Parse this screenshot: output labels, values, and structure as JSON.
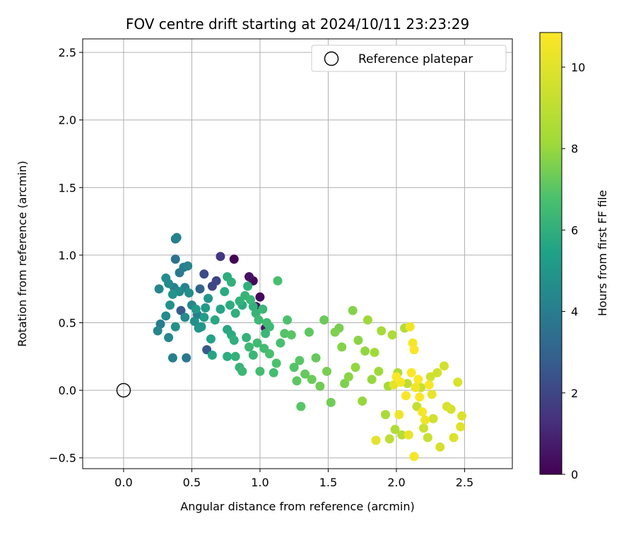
{
  "chart_data": {
    "type": "scatter",
    "title": "FOV centre drift starting at 2024/10/11 23:23:29",
    "xlabel": "Angular distance from reference (arcmin)",
    "ylabel": "Rotation from reference (arcmin)",
    "xlim": [
      -0.3,
      2.85
    ],
    "ylim": [
      -0.58,
      2.6
    ],
    "xticks": [
      0.0,
      0.5,
      1.0,
      1.5,
      2.0,
      2.5
    ],
    "xtick_labels": [
      "0.0",
      "0.5",
      "1.0",
      "1.5",
      "2.0",
      "2.5"
    ],
    "yticks": [
      -0.5,
      0.0,
      0.5,
      1.0,
      1.5,
      2.0,
      2.5
    ],
    "ytick_labels": [
      "−0.5",
      "0.0",
      "0.5",
      "1.0",
      "1.5",
      "2.0",
      "2.5"
    ],
    "grid": true,
    "legend": {
      "position": "top-right",
      "entries": [
        {
          "label": "Reference platepar",
          "marker": "open-circle"
        }
      ]
    },
    "reference_point": {
      "x": 0.0,
      "y": 0.0
    },
    "colorbar": {
      "label": "Hours from first FF file",
      "colormap": "viridis",
      "range": [
        0,
        10.85
      ],
      "ticks": [
        0,
        2,
        4,
        6,
        8,
        10
      ],
      "tick_labels": [
        "0",
        "2",
        "4",
        "6",
        "8",
        "10"
      ]
    },
    "points": [
      {
        "x": 0.71,
        "y": 0.99,
        "c": 1.5
      },
      {
        "x": 0.81,
        "y": 0.97,
        "c": 0.1
      },
      {
        "x": 0.92,
        "y": 0.84,
        "c": 0.5
      },
      {
        "x": 0.95,
        "y": 0.81,
        "c": 0.2
      },
      {
        "x": 0.97,
        "y": 0.62,
        "c": 0.6
      },
      {
        "x": 1.0,
        "y": 0.69,
        "c": 0.3
      },
      {
        "x": 1.04,
        "y": 0.46,
        "c": 0.7
      },
      {
        "x": 0.68,
        "y": 0.81,
        "c": 2.0
      },
      {
        "x": 0.59,
        "y": 0.86,
        "c": 2.2
      },
      {
        "x": 0.65,
        "y": 0.77,
        "c": 2.0
      },
      {
        "x": 0.61,
        "y": 0.3,
        "c": 2.6
      },
      {
        "x": 0.46,
        "y": 0.24,
        "c": 3.8
      },
      {
        "x": 0.36,
        "y": 0.24,
        "c": 4.1
      },
      {
        "x": 0.38,
        "y": 1.12,
        "c": 3.8
      },
      {
        "x": 0.39,
        "y": 1.13,
        "c": 4.2
      },
      {
        "x": 0.38,
        "y": 0.97,
        "c": 3.6
      },
      {
        "x": 0.41,
        "y": 0.87,
        "c": 3.8
      },
      {
        "x": 0.44,
        "y": 0.91,
        "c": 4.0
      },
      {
        "x": 0.47,
        "y": 0.92,
        "c": 4.3
      },
      {
        "x": 0.42,
        "y": 0.59,
        "c": 2.7
      },
      {
        "x": 0.56,
        "y": 0.75,
        "c": 3.0
      },
      {
        "x": 0.31,
        "y": 0.55,
        "c": 4.5
      },
      {
        "x": 0.25,
        "y": 0.44,
        "c": 4.3
      },
      {
        "x": 0.27,
        "y": 0.49,
        "c": 4.0
      },
      {
        "x": 0.33,
        "y": 0.39,
        "c": 4.4
      },
      {
        "x": 0.38,
        "y": 0.47,
        "c": 4.8
      },
      {
        "x": 0.45,
        "y": 0.54,
        "c": 4.6
      },
      {
        "x": 0.52,
        "y": 0.51,
        "c": 4.7
      },
      {
        "x": 0.54,
        "y": 0.56,
        "c": 4.1
      },
      {
        "x": 0.57,
        "y": 0.47,
        "c": 5.0
      },
      {
        "x": 0.6,
        "y": 0.61,
        "c": 5.2
      },
      {
        "x": 0.62,
        "y": 0.68,
        "c": 5.0
      },
      {
        "x": 0.5,
        "y": 0.63,
        "c": 4.4
      },
      {
        "x": 0.48,
        "y": 0.72,
        "c": 4.7
      },
      {
        "x": 0.45,
        "y": 0.76,
        "c": 4.2
      },
      {
        "x": 0.41,
        "y": 0.73,
        "c": 4.6
      },
      {
        "x": 0.36,
        "y": 0.71,
        "c": 4.9
      },
      {
        "x": 0.33,
        "y": 0.79,
        "c": 4.5
      },
      {
        "x": 0.26,
        "y": 0.75,
        "c": 4.3
      },
      {
        "x": 0.34,
        "y": 0.63,
        "c": 4.8
      },
      {
        "x": 0.31,
        "y": 0.83,
        "c": 4.6
      },
      {
        "x": 0.37,
        "y": 0.76,
        "c": 4.1
      },
      {
        "x": 0.53,
        "y": 0.6,
        "c": 5.1
      },
      {
        "x": 0.55,
        "y": 0.46,
        "c": 4.9
      },
      {
        "x": 0.59,
        "y": 0.54,
        "c": 5.3
      },
      {
        "x": 0.64,
        "y": 0.38,
        "c": 5.5
      },
      {
        "x": 0.65,
        "y": 0.26,
        "c": 5.6
      },
      {
        "x": 0.67,
        "y": 0.52,
        "c": 5.7
      },
      {
        "x": 0.71,
        "y": 0.6,
        "c": 5.6
      },
      {
        "x": 0.74,
        "y": 0.73,
        "c": 5.8
      },
      {
        "x": 0.76,
        "y": 0.84,
        "c": 5.9
      },
      {
        "x": 0.79,
        "y": 0.8,
        "c": 6.0
      },
      {
        "x": 0.78,
        "y": 0.63,
        "c": 5.9
      },
      {
        "x": 0.82,
        "y": 0.57,
        "c": 6.0
      },
      {
        "x": 0.85,
        "y": 0.66,
        "c": 6.1
      },
      {
        "x": 0.87,
        "y": 0.63,
        "c": 5.8
      },
      {
        "x": 0.89,
        "y": 0.7,
        "c": 6.2
      },
      {
        "x": 0.91,
        "y": 0.77,
        "c": 6.0
      },
      {
        "x": 0.93,
        "y": 0.67,
        "c": 6.3
      },
      {
        "x": 0.95,
        "y": 0.62,
        "c": 6.1
      },
      {
        "x": 0.97,
        "y": 0.57,
        "c": 6.2
      },
      {
        "x": 0.99,
        "y": 0.52,
        "c": 6.4
      },
      {
        "x": 1.02,
        "y": 0.6,
        "c": 6.3
      },
      {
        "x": 1.05,
        "y": 0.5,
        "c": 6.5
      },
      {
        "x": 1.07,
        "y": 0.47,
        "c": 6.4
      },
      {
        "x": 1.04,
        "y": 0.42,
        "c": 6.3
      },
      {
        "x": 0.76,
        "y": 0.45,
        "c": 5.7
      },
      {
        "x": 0.79,
        "y": 0.41,
        "c": 5.8
      },
      {
        "x": 0.81,
        "y": 0.37,
        "c": 6.0
      },
      {
        "x": 0.76,
        "y": 0.25,
        "c": 5.9
      },
      {
        "x": 0.82,
        "y": 0.25,
        "c": 6.1
      },
      {
        "x": 0.85,
        "y": 0.17,
        "c": 6.2
      },
      {
        "x": 0.87,
        "y": 0.14,
        "c": 6.3
      },
      {
        "x": 0.9,
        "y": 0.39,
        "c": 6.1
      },
      {
        "x": 0.92,
        "y": 0.32,
        "c": 6.4
      },
      {
        "x": 0.95,
        "y": 0.26,
        "c": 6.3
      },
      {
        "x": 0.98,
        "y": 0.35,
        "c": 6.5
      },
      {
        "x": 1.0,
        "y": 0.14,
        "c": 6.6
      },
      {
        "x": 1.03,
        "y": 0.31,
        "c": 6.5
      },
      {
        "x": 1.07,
        "y": 0.27,
        "c": 6.7
      },
      {
        "x": 1.1,
        "y": 0.13,
        "c": 6.6
      },
      {
        "x": 1.12,
        "y": 0.2,
        "c": 6.8
      },
      {
        "x": 1.15,
        "y": 0.35,
        "c": 6.7
      },
      {
        "x": 1.18,
        "y": 0.42,
        "c": 6.9
      },
      {
        "x": 1.13,
        "y": 0.81,
        "c": 6.7
      },
      {
        "x": 1.2,
        "y": 0.52,
        "c": 6.8
      },
      {
        "x": 1.23,
        "y": 0.41,
        "c": 7.0
      },
      {
        "x": 1.25,
        "y": 0.17,
        "c": 6.9
      },
      {
        "x": 1.27,
        "y": 0.07,
        "c": 7.1
      },
      {
        "x": 1.29,
        "y": 0.22,
        "c": 7.0
      },
      {
        "x": 1.3,
        "y": -0.12,
        "c": 7.0
      },
      {
        "x": 1.33,
        "y": 0.12,
        "c": 7.2
      },
      {
        "x": 1.36,
        "y": 0.43,
        "c": 7.1
      },
      {
        "x": 1.38,
        "y": 0.08,
        "c": 7.3
      },
      {
        "x": 1.41,
        "y": 0.24,
        "c": 7.2
      },
      {
        "x": 1.44,
        "y": 0.03,
        "c": 7.4
      },
      {
        "x": 1.47,
        "y": 0.52,
        "c": 7.3
      },
      {
        "x": 1.49,
        "y": 0.14,
        "c": 7.5
      },
      {
        "x": 1.52,
        "y": -0.09,
        "c": 7.4
      },
      {
        "x": 1.55,
        "y": 0.43,
        "c": 7.6
      },
      {
        "x": 1.58,
        "y": 0.46,
        "c": 7.5
      },
      {
        "x": 1.6,
        "y": 0.32,
        "c": 7.7
      },
      {
        "x": 1.62,
        "y": 0.05,
        "c": 7.6
      },
      {
        "x": 1.65,
        "y": 0.1,
        "c": 7.8
      },
      {
        "x": 1.68,
        "y": 0.59,
        "c": 7.7
      },
      {
        "x": 1.7,
        "y": 0.17,
        "c": 7.9
      },
      {
        "x": 1.72,
        "y": 0.37,
        "c": 7.8
      },
      {
        "x": 1.75,
        "y": -0.08,
        "c": 8.0
      },
      {
        "x": 1.77,
        "y": 0.29,
        "c": 7.9
      },
      {
        "x": 1.79,
        "y": 0.52,
        "c": 8.1
      },
      {
        "x": 1.82,
        "y": 0.08,
        "c": 8.0
      },
      {
        "x": 1.84,
        "y": 0.28,
        "c": 8.2
      },
      {
        "x": 1.87,
        "y": 0.14,
        "c": 8.1
      },
      {
        "x": 1.89,
        "y": 0.44,
        "c": 8.3
      },
      {
        "x": 1.92,
        "y": -0.18,
        "c": 8.4
      },
      {
        "x": 1.94,
        "y": 0.03,
        "c": 8.3
      },
      {
        "x": 1.97,
        "y": 0.41,
        "c": 8.5
      },
      {
        "x": 1.99,
        "y": -0.29,
        "c": 8.6
      },
      {
        "x": 2.01,
        "y": 0.13,
        "c": 8.5
      },
      {
        "x": 2.04,
        "y": -0.33,
        "c": 8.8
      },
      {
        "x": 2.06,
        "y": 0.46,
        "c": 8.7
      },
      {
        "x": 2.08,
        "y": 0.05,
        "c": 9.0
      },
      {
        "x": 1.95,
        "y": -0.36,
        "c": 9.0
      },
      {
        "x": 2.15,
        "y": -0.12,
        "c": 9.2
      },
      {
        "x": 2.18,
        "y": 0.02,
        "c": 9.3
      },
      {
        "x": 2.2,
        "y": -0.28,
        "c": 9.4
      },
      {
        "x": 2.23,
        "y": -0.35,
        "c": 9.3
      },
      {
        "x": 2.25,
        "y": 0.1,
        "c": 9.5
      },
      {
        "x": 2.27,
        "y": -0.21,
        "c": 9.6
      },
      {
        "x": 2.3,
        "y": 0.13,
        "c": 9.5
      },
      {
        "x": 2.32,
        "y": -0.42,
        "c": 9.7
      },
      {
        "x": 2.35,
        "y": 0.18,
        "c": 9.6
      },
      {
        "x": 2.37,
        "y": -0.12,
        "c": 9.8
      },
      {
        "x": 2.4,
        "y": -0.14,
        "c": 9.7
      },
      {
        "x": 2.42,
        "y": -0.35,
        "c": 9.9
      },
      {
        "x": 2.45,
        "y": 0.06,
        "c": 9.8
      },
      {
        "x": 2.47,
        "y": -0.27,
        "c": 10.0
      },
      {
        "x": 2.48,
        "y": -0.19,
        "c": 9.9
      },
      {
        "x": 1.85,
        "y": -0.37,
        "c": 10.1
      },
      {
        "x": 2.1,
        "y": 0.47,
        "c": 10.5
      },
      {
        "x": 2.12,
        "y": 0.35,
        "c": 10.6
      },
      {
        "x": 2.13,
        "y": 0.3,
        "c": 10.7
      },
      {
        "x": 2.0,
        "y": 0.1,
        "c": 10.8
      },
      {
        "x": 2.03,
        "y": 0.06,
        "c": 10.6
      },
      {
        "x": 2.07,
        "y": -0.04,
        "c": 10.7
      },
      {
        "x": 2.11,
        "y": 0.13,
        "c": 10.8
      },
      {
        "x": 2.14,
        "y": 0.02,
        "c": 10.5
      },
      {
        "x": 2.16,
        "y": 0.08,
        "c": 10.8
      },
      {
        "x": 2.19,
        "y": -0.16,
        "c": 10.6
      },
      {
        "x": 2.21,
        "y": -0.22,
        "c": 10.4
      },
      {
        "x": 2.24,
        "y": 0.04,
        "c": 10.7
      },
      {
        "x": 2.26,
        "y": -0.03,
        "c": 10.2
      },
      {
        "x": 2.13,
        "y": -0.49,
        "c": 10.6
      },
      {
        "x": 2.09,
        "y": -0.33,
        "c": 10.3
      },
      {
        "x": 2.17,
        "y": -0.05,
        "c": 10.8
      },
      {
        "x": 2.02,
        "y": -0.18,
        "c": 10.4
      },
      {
        "x": 1.98,
        "y": 0.04,
        "c": 10.1
      }
    ]
  }
}
